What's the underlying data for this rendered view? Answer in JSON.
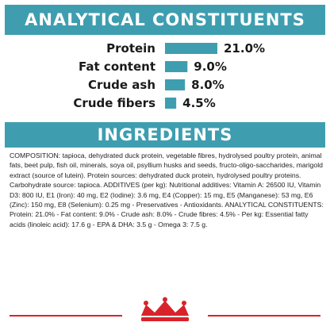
{
  "analytical_section": {
    "title": "ANALYTICAL CONSTITUENTS"
  },
  "ingredients_section": {
    "title": "INGREDIENTS",
    "body": "COMPOSITION: tapioca, dehydrated duck protein, vegetable fibres, hydrolysed poultry protein, animal fats, beet pulp, fish oil, minerals, soya oil, psyllium husks and seeds, fructo-oligo-saccharides, marigold extract (source of lutein). Protein sources: dehydrated duck protein, hydrolysed poultry proteins. Carbohydrate source: tapioca. ADDITIVES (per kg): Nutritional additives: Vitamin A: 26500 IU, Vitamin D3: 800 IU, E1 (Iron): 40 mg, E2 (Iodine): 3.6 mg, E4 (Copper): 15 mg, E5 (Manganese): 53 mg, E6 (Zinc): 150 mg, E8 (Selenium): 0.25 mg - Preservatives - Antioxidants. ANALYTICAL CONSTITUENTS: Protein: 21.0% - Fat content: 9.0% - Crude ash: 8.0% - Crude fibres: 4.5% - Per kg: Essential fatty acids (linoleic acid): 17.6 g - EPA & DHA: 3.5 g - Omega 3: 7.5 g."
  },
  "chart_data": {
    "type": "bar",
    "orientation": "horizontal",
    "categories": [
      "Protein",
      "Fat content",
      "Crude ash",
      "Crude fibers"
    ],
    "values": [
      21.0,
      9.0,
      8.0,
      4.5
    ],
    "value_labels": [
      "21.0%",
      "9.0%",
      "8.0%",
      "4.5%"
    ],
    "title": "ANALYTICAL CONSTITUENTS",
    "xlabel": "",
    "ylabel": "",
    "xlim": [
      0,
      21.0
    ],
    "grid": false,
    "legend": "none",
    "bar_color": "#3e9eb0"
  },
  "colors": {
    "accent": "#3e9eb0",
    "brand_red": "#d8232a",
    "text": "#1a1a1a"
  },
  "footer": {
    "logo_icon": "royal-canin-crown-logo-icon"
  }
}
